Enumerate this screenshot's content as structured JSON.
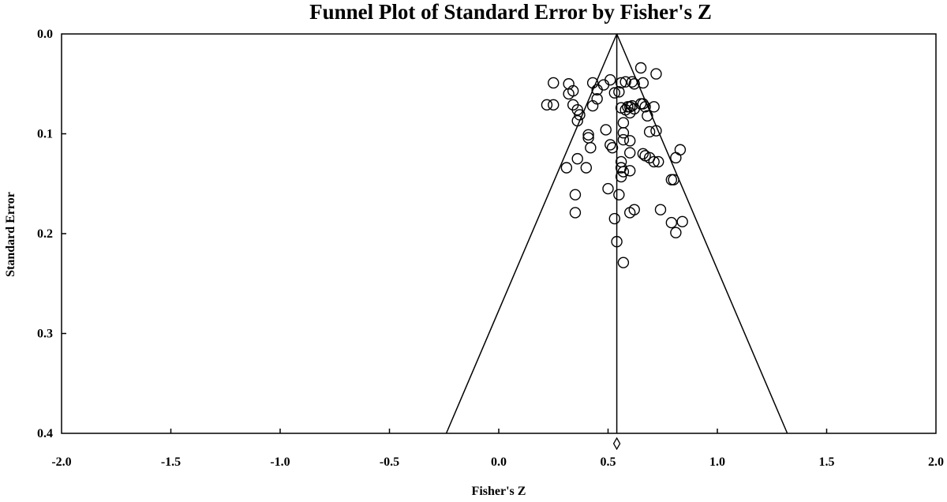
{
  "chart_data": {
    "type": "scatter",
    "title": "Funnel Plot of Standard Error by Fisher's Z",
    "xlabel": "Fisher's Z",
    "ylabel": "Standard Error",
    "xlim": [
      -2.0,
      2.0
    ],
    "ylim": [
      0.0,
      0.4
    ],
    "y_inverted": true,
    "grid": false,
    "x_ticks": [
      "-2.0",
      "-1.5",
      "-1.0",
      "-0.5",
      "0.0",
      "0.5",
      "1.0",
      "1.5",
      "2.0"
    ],
    "y_ticks": [
      "0.0",
      "0.1",
      "0.2",
      "0.3",
      "0.4"
    ],
    "pooled_estimate": 0.54,
    "funnel": {
      "apex": [
        0.54,
        0.0
      ],
      "bottom_left": [
        -0.24,
        0.4
      ],
      "bottom_right": [
        1.32,
        0.4
      ]
    },
    "points": [
      {
        "x": 0.65,
        "y": 0.034
      },
      {
        "x": 0.72,
        "y": 0.04
      },
      {
        "x": 0.51,
        "y": 0.046
      },
      {
        "x": 0.25,
        "y": 0.049
      },
      {
        "x": 0.32,
        "y": 0.05
      },
      {
        "x": 0.43,
        "y": 0.049
      },
      {
        "x": 0.48,
        "y": 0.051
      },
      {
        "x": 0.56,
        "y": 0.049
      },
      {
        "x": 0.58,
        "y": 0.048
      },
      {
        "x": 0.61,
        "y": 0.048
      },
      {
        "x": 0.62,
        "y": 0.05
      },
      {
        "x": 0.66,
        "y": 0.049
      },
      {
        "x": 0.34,
        "y": 0.057
      },
      {
        "x": 0.45,
        "y": 0.056
      },
      {
        "x": 0.53,
        "y": 0.059
      },
      {
        "x": 0.55,
        "y": 0.058
      },
      {
        "x": 0.32,
        "y": 0.06
      },
      {
        "x": 0.45,
        "y": 0.065
      },
      {
        "x": 0.43,
        "y": 0.072
      },
      {
        "x": 0.22,
        "y": 0.071
      },
      {
        "x": 0.25,
        "y": 0.071
      },
      {
        "x": 0.34,
        "y": 0.071
      },
      {
        "x": 0.36,
        "y": 0.076
      },
      {
        "x": 0.37,
        "y": 0.081
      },
      {
        "x": 0.36,
        "y": 0.087
      },
      {
        "x": 0.58,
        "y": 0.076
      },
      {
        "x": 0.59,
        "y": 0.073
      },
      {
        "x": 0.6,
        "y": 0.073
      },
      {
        "x": 0.6,
        "y": 0.079
      },
      {
        "x": 0.61,
        "y": 0.072
      },
      {
        "x": 0.62,
        "y": 0.075
      },
      {
        "x": 0.65,
        "y": 0.07
      },
      {
        "x": 0.67,
        "y": 0.073
      },
      {
        "x": 0.66,
        "y": 0.07
      },
      {
        "x": 0.71,
        "y": 0.073
      },
      {
        "x": 0.68,
        "y": 0.082
      },
      {
        "x": 0.56,
        "y": 0.074
      },
      {
        "x": 0.57,
        "y": 0.089
      },
      {
        "x": 0.49,
        "y": 0.096
      },
      {
        "x": 0.57,
        "y": 0.099
      },
      {
        "x": 0.69,
        "y": 0.098
      },
      {
        "x": 0.72,
        "y": 0.097
      },
      {
        "x": 0.41,
        "y": 0.101
      },
      {
        "x": 0.41,
        "y": 0.104
      },
      {
        "x": 0.57,
        "y": 0.106
      },
      {
        "x": 0.6,
        "y": 0.107
      },
      {
        "x": 0.42,
        "y": 0.114
      },
      {
        "x": 0.51,
        "y": 0.111
      },
      {
        "x": 0.52,
        "y": 0.114
      },
      {
        "x": 0.6,
        "y": 0.119
      },
      {
        "x": 0.66,
        "y": 0.12
      },
      {
        "x": 0.67,
        "y": 0.122
      },
      {
        "x": 0.69,
        "y": 0.124
      },
      {
        "x": 0.83,
        "y": 0.116
      },
      {
        "x": 0.81,
        "y": 0.124
      },
      {
        "x": 0.36,
        "y": 0.125
      },
      {
        "x": 0.56,
        "y": 0.128
      },
      {
        "x": 0.56,
        "y": 0.134
      },
      {
        "x": 0.71,
        "y": 0.128
      },
      {
        "x": 0.73,
        "y": 0.128
      },
      {
        "x": 0.31,
        "y": 0.134
      },
      {
        "x": 0.4,
        "y": 0.134
      },
      {
        "x": 0.57,
        "y": 0.138
      },
      {
        "x": 0.6,
        "y": 0.137
      },
      {
        "x": 0.56,
        "y": 0.143
      },
      {
        "x": 0.79,
        "y": 0.146
      },
      {
        "x": 0.8,
        "y": 0.146
      },
      {
        "x": 0.5,
        "y": 0.155
      },
      {
        "x": 0.35,
        "y": 0.161
      },
      {
        "x": 0.55,
        "y": 0.161
      },
      {
        "x": 0.35,
        "y": 0.179
      },
      {
        "x": 0.53,
        "y": 0.185
      },
      {
        "x": 0.6,
        "y": 0.179
      },
      {
        "x": 0.62,
        "y": 0.176
      },
      {
        "x": 0.74,
        "y": 0.176
      },
      {
        "x": 0.79,
        "y": 0.189
      },
      {
        "x": 0.84,
        "y": 0.188
      },
      {
        "x": 0.81,
        "y": 0.199
      },
      {
        "x": 0.54,
        "y": 0.208
      },
      {
        "x": 0.57,
        "y": 0.229
      }
    ]
  }
}
